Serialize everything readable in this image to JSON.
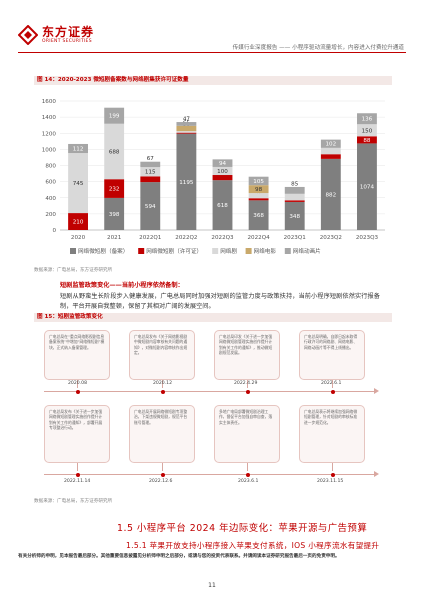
{
  "header": {
    "logo_cn": "东方证券",
    "logo_en": "ORIENT SECURITIES",
    "report_title": "传媒行业深度报告 —— 小程序驱动流量增长，内容进入付费拉升通道"
  },
  "figure14": {
    "title": "图 14：2020-2023 微短剧备案数与网络剧集获许可证数量",
    "source": "数据来源：广电总局，东方证券研究所"
  },
  "chart_data": {
    "type": "bar",
    "stacked": true,
    "categories": [
      "2020",
      "2021",
      "2022Q1",
      "2022Q2",
      "2022Q3",
      "2022Q4",
      "2023Q1",
      "2023Q2",
      "2023Q3"
    ],
    "ylim": [
      0,
      1600
    ],
    "yticks": [
      "0",
      "200",
      "400",
      "600",
      "800",
      "1000",
      "1200",
      "1400",
      "1600"
    ],
    "grid": true,
    "legend_position": "bottom",
    "series": [
      {
        "name": "网络微短剧（备案）",
        "color": "#7f7f7f",
        "values": [
          null,
          398,
          594,
          1195,
          618,
          368,
          348,
          882,
          1074
        ]
      },
      {
        "name": "网络微短剧（许可证）",
        "color": "#c00000",
        "values": [
          210,
          232,
          71,
          12,
          64,
          26,
          20,
          58,
          88
        ]
      },
      {
        "name": "网络剧",
        "color": "#d9d9d9",
        "values": [
          745,
          688,
          115,
          20,
          100,
          64,
          81,
          79,
          150
        ]
      },
      {
        "name": "网络电影",
        "color": "#c9a96b",
        "values": [
          null,
          null,
          null,
          65,
          null,
          98,
          null,
          null,
          null
        ]
      },
      {
        "name": "网络动画片",
        "color": "#a6a6a6",
        "values": [
          112,
          199,
          67,
          47,
          94,
          105,
          85,
          102,
          136
        ]
      }
    ]
  },
  "body_text": {
    "lead": "短剧监管政策变化——当前小程序依然备制：",
    "text": "短剧从野蛮生长阶段步入健康发展，广电总局同时加强对短剧的监管力度与政策扶持，当前小程序短剧依然实行报备制，平台开展自我整顿，保留了其相对广阔的发展空间。"
  },
  "figure15": {
    "title": "图 15：短剧监管政策变化",
    "source": "数据来源：广电总局，东方证券研究所"
  },
  "timeline": {
    "top_events": [
      {
        "date": "2020.08",
        "text": "广电总局在“重点网络影视剧信息备案系统”中增加“网络微短剧”模块，正式纳入备案管理。"
      },
      {
        "date": "2020.12",
        "text": "广电总局发布《关于网络影视剧中微短剧内容审核有关问题的通知》，对微短剧内容审核作出规定。"
      },
      {
        "date": "2022.4.29",
        "text": "广电总局印发《关于进一步加强网络微短剧管理实施创作提升计划有关工作的通知》，推动微短剧规范发展。"
      },
      {
        "date": "2022.6.1",
        "text": "广电总局明确，自即日起未取得行政许可的网络剧、网络电影、网络动画片等不得上线播出。"
      }
    ],
    "bottom_events": [
      {
        "date": "2022.11.14",
        "text": "广电总局发布《关于进一步加强网络微短剧管理实施创作提升计划有关工作的通知》，部署开展专项整治行动。"
      },
      {
        "date": "2022.12.6",
        "text": "广电总局开展网络微短剧专项整治，下架违规微短剧，规范平台账号管理。"
      },
      {
        "date": "2023.6.1",
        "text": "多地广电局部署微短剧治理工作，督促平台加强自审自查，落实主体责任。"
      },
      {
        "date": "2023.11.15",
        "text": "广电总局表示将继续加强网络微短剧管理，针对短剧的审核标准进一步规范化。"
      }
    ]
  },
  "section": {
    "title": "1.5 小程序平台 2024 年边际变化：苹果开源与广告预算",
    "subtitle": "1.5.1 苹果开放支持小程序接入苹果支付系统，IOS 小程序流水有望提升"
  },
  "footer": {
    "disclaimer": "有关分析师的申明，见本报告最后部分。其他重要信息披露见分析师申明之后部分，或请与您的投资代表联系。并请阅读本证券研究报告最后一页的免责申明。",
    "page_number": "11"
  }
}
